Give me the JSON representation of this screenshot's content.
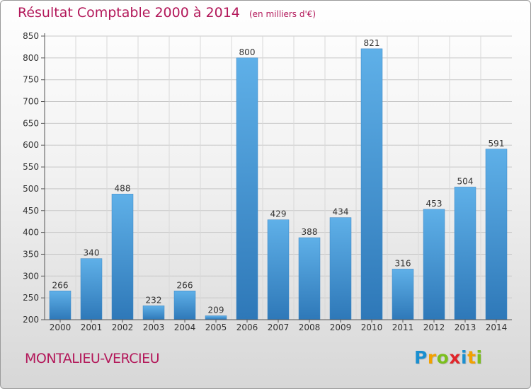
{
  "header": {
    "title": "Résultat Comptable 2000 à 2014",
    "unit": "(en milliers d'€)"
  },
  "chart_data": {
    "type": "bar",
    "title": "Résultat Comptable 2000 à 2014",
    "subtitle": "(en milliers d'€)",
    "xlabel": "",
    "ylabel": "",
    "categories": [
      "2000",
      "2001",
      "2002",
      "2003",
      "2004",
      "2005",
      "2006",
      "2007",
      "2008",
      "2009",
      "2010",
      "2011",
      "2012",
      "2013",
      "2014"
    ],
    "values": [
      266,
      340,
      488,
      232,
      266,
      209,
      800,
      429,
      388,
      434,
      821,
      316,
      453,
      504,
      591
    ],
    "ylim": [
      200,
      850
    ],
    "yticks": [
      200,
      250,
      300,
      350,
      400,
      450,
      500,
      550,
      600,
      650,
      700,
      750,
      800,
      850
    ],
    "grid": true,
    "bar_color": "#4a9bd8"
  },
  "footer": {
    "commune": "MONTALIEU-VERCIEU"
  },
  "brand": {
    "letters": [
      {
        "ch": "P",
        "color": "#1a8fd0"
      },
      {
        "ch": "r",
        "color": "#f2a100"
      },
      {
        "ch": "o",
        "color": "#7bbf1d"
      },
      {
        "ch": "x",
        "color": "#e0262b"
      },
      {
        "ch": "i",
        "color": "#1a8fd0"
      },
      {
        "ch": "t",
        "color": "#f2a100"
      },
      {
        "ch": "i",
        "color": "#7bbf1d"
      }
    ]
  }
}
